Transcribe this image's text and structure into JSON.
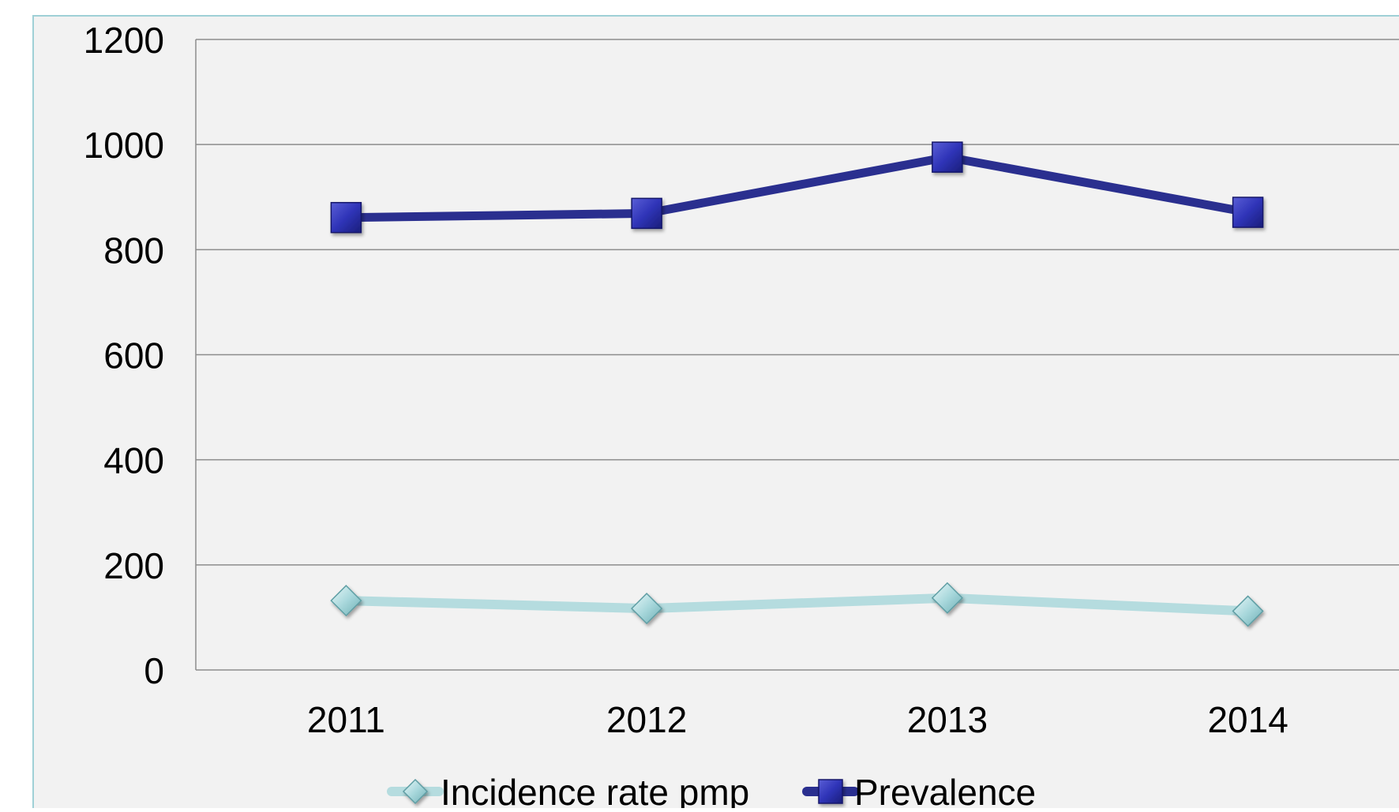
{
  "chart_data": {
    "type": "line",
    "title": "",
    "xlabel": "",
    "ylabel": "",
    "categories": [
      "2011",
      "2012",
      "2013",
      "2014"
    ],
    "ylim": [
      0,
      1200
    ],
    "yticks": [
      0,
      200,
      400,
      600,
      800,
      1000,
      1200
    ],
    "grid": true,
    "legend": "bottom",
    "series": [
      {
        "name": "Incidence rate pmp",
        "values": [
          132,
          117,
          137,
          112
        ],
        "color": "#b5dcdf",
        "marker": "diamond"
      },
      {
        "name": "Prevalence",
        "values": [
          861,
          869,
          976,
          871
        ],
        "color": "#2a2f8f",
        "marker": "square"
      }
    ]
  }
}
